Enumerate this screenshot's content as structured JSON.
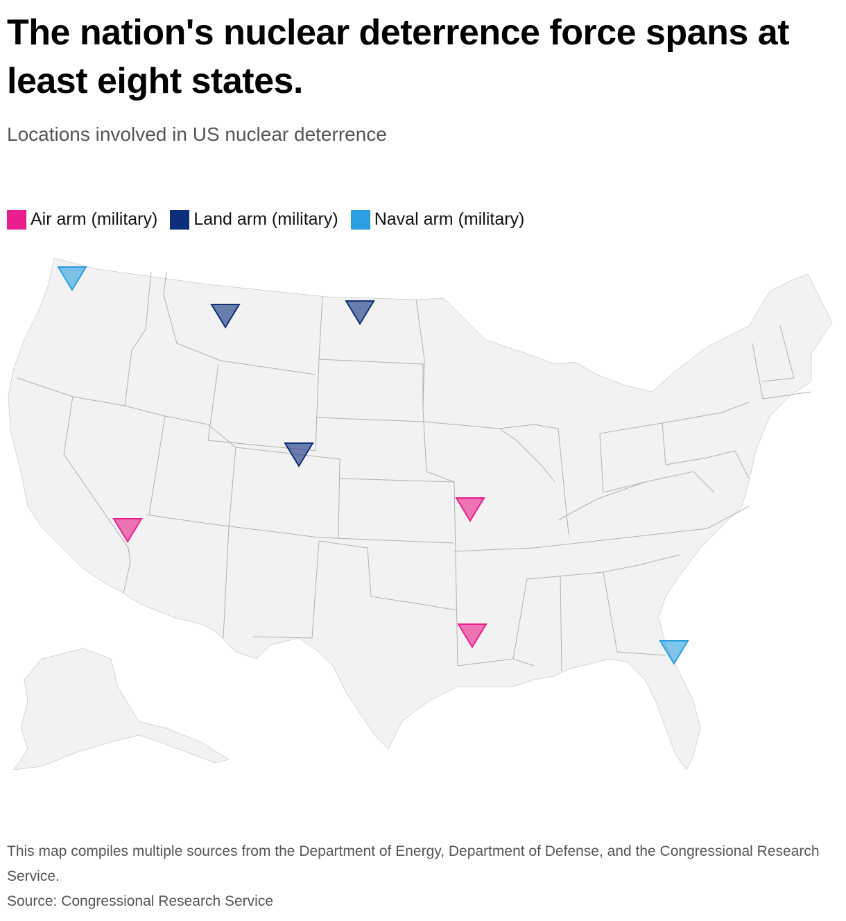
{
  "title": "The nation's nuclear deterrence force spans at least eight states.",
  "subtitle": "Locations involved in US nuclear deterrence",
  "legend": [
    {
      "label": "Air arm (military)",
      "color": "#e91e8c"
    },
    {
      "label": "Land arm (military)",
      "color": "#0b2f7a"
    },
    {
      "label": "Naval arm (military)",
      "color": "#2a9ee0"
    }
  ],
  "colors": {
    "land": "#f2f2f2",
    "border": "#b0b0b0"
  },
  "markers": [
    {
      "arm": "Naval arm (military)",
      "state": "Washington"
    },
    {
      "arm": "Land arm (military)",
      "state": "Montana"
    },
    {
      "arm": "Land arm (military)",
      "state": "North Dakota"
    },
    {
      "arm": "Land arm (military)",
      "state": "Wyoming"
    },
    {
      "arm": "Air arm (military)",
      "state": "Missouri"
    },
    {
      "arm": "Air arm (military)",
      "state": "California"
    },
    {
      "arm": "Air arm (military)",
      "state": "Louisiana"
    },
    {
      "arm": "Naval arm (military)",
      "state": "Georgia"
    }
  ],
  "footer": {
    "note": "This map compiles multiple sources from the Department of Energy, Department of Defense, and the Congressional Research Service.",
    "source": "Source: Congressional Research Service"
  }
}
